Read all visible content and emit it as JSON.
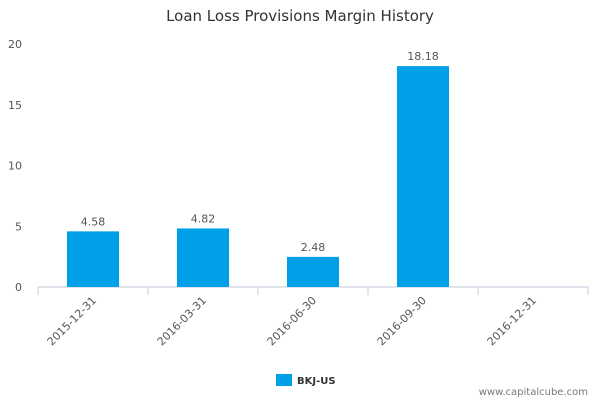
{
  "chart_data": {
    "type": "bar",
    "title": "Loan Loss Provisions Margin History",
    "xlabel": "",
    "ylabel": "",
    "categories": [
      "2015-12-31",
      "2016-03-31",
      "2016-06-30",
      "2016-09-30",
      "2016-12-31"
    ],
    "series": [
      {
        "name": "BKJ-US",
        "values": [
          4.58,
          4.82,
          2.48,
          18.18,
          null
        ],
        "labels": [
          "4.58",
          "4.82",
          "2.48",
          "18.18",
          ""
        ]
      }
    ],
    "ylim": [
      0,
      20
    ],
    "yticks": [
      "0",
      "5",
      "10",
      "15",
      "20"
    ],
    "legend_position": "bottom-center",
    "grid": false,
    "colors": {
      "bar": "#00a0e9",
      "axis": "#c0c8d8"
    }
  },
  "watermark": "www.capitalcube.com"
}
